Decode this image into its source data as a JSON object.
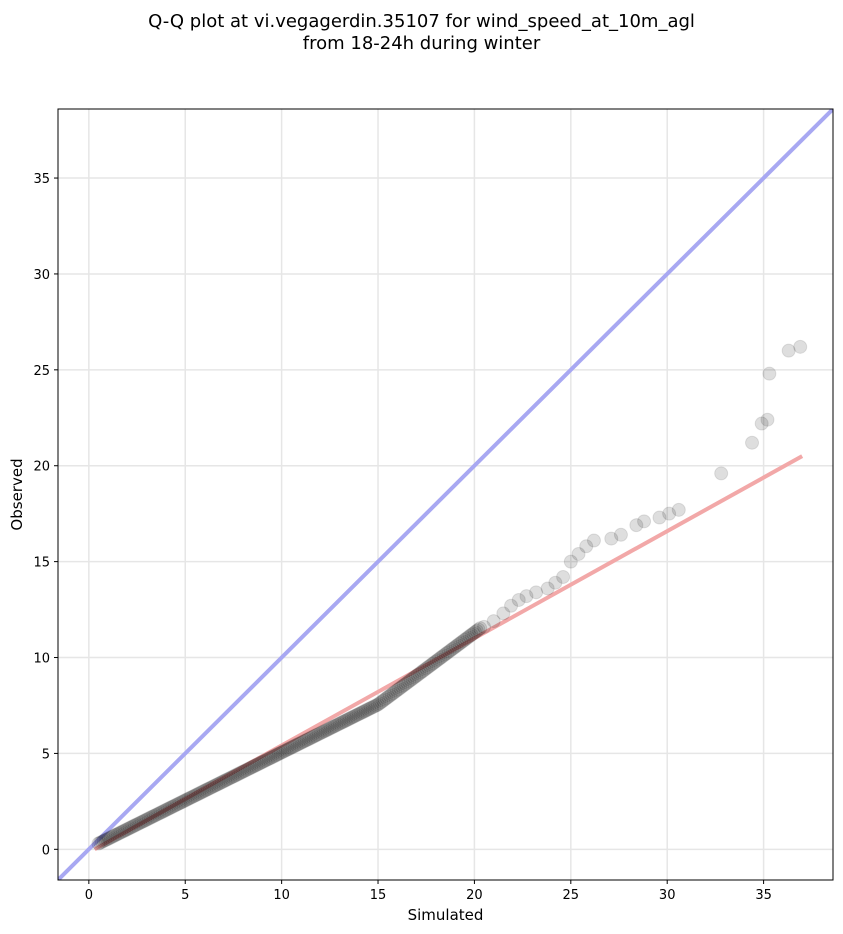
{
  "title_line1": "Q-Q plot at vi.vegagerdin.35107 for wind_speed_at_10m_agl",
  "title_line2": "from 18-24h during winter",
  "chart_data": {
    "type": "scatter",
    "xlabel": "Simulated",
    "ylabel": "Observed",
    "xlim": [
      -1.6,
      38.6
    ],
    "ylim": [
      -1.6,
      38.6
    ],
    "xticks": [
      0,
      5,
      10,
      15,
      20,
      25,
      30,
      35
    ],
    "yticks": [
      0,
      5,
      10,
      15,
      20,
      25,
      30,
      35
    ],
    "grid": true,
    "colors": {
      "points": "#000000",
      "identity_line": "#a8a8f2",
      "fit_line": "#f2a8a8",
      "grid": "#e6e6e6"
    },
    "identity_line": {
      "from": [
        -1.6,
        -1.6
      ],
      "to": [
        38.6,
        38.6
      ]
    },
    "fit_line": {
      "from": [
        0.3,
        0.0
      ],
      "to": [
        37.0,
        20.5
      ]
    },
    "tail_points": [
      [
        20.5,
        11.6
      ],
      [
        21.0,
        11.9
      ],
      [
        21.5,
        12.3
      ],
      [
        21.9,
        12.7
      ],
      [
        22.3,
        13.0
      ],
      [
        22.7,
        13.2
      ],
      [
        23.2,
        13.4
      ],
      [
        23.8,
        13.6
      ],
      [
        24.2,
        13.9
      ],
      [
        24.6,
        14.2
      ],
      [
        25.0,
        15.0
      ],
      [
        25.4,
        15.4
      ],
      [
        25.8,
        15.8
      ],
      [
        26.2,
        16.1
      ],
      [
        27.1,
        16.2
      ],
      [
        27.6,
        16.4
      ],
      [
        28.4,
        16.9
      ],
      [
        28.8,
        17.1
      ],
      [
        29.6,
        17.3
      ],
      [
        30.1,
        17.5
      ],
      [
        30.6,
        17.7
      ],
      [
        32.8,
        19.6
      ],
      [
        34.4,
        21.2
      ],
      [
        34.9,
        22.2
      ],
      [
        35.2,
        22.4
      ],
      [
        35.3,
        24.8
      ],
      [
        36.3,
        26.0
      ],
      [
        36.9,
        26.2
      ]
    ]
  }
}
